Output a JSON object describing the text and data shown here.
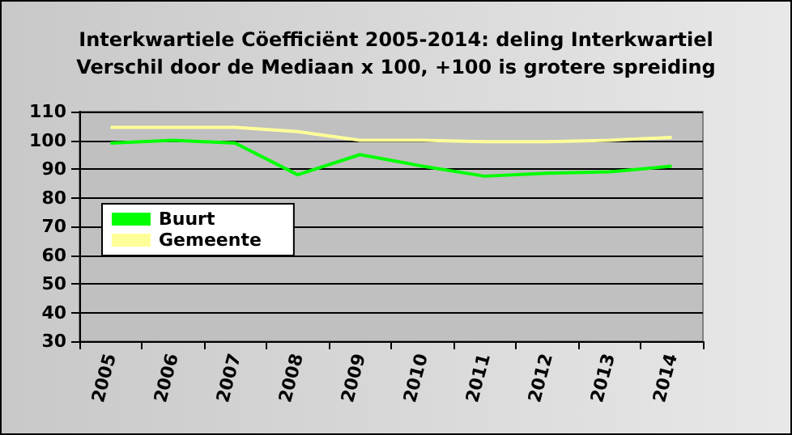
{
  "chart_data": {
    "type": "line",
    "title": "Interkwartiele Cöefficiënt 2005-2014: deling Interkwartiel\nVerschil door de Mediaan x 100, +100 is grotere spreiding",
    "categories": [
      "2005",
      "2006",
      "2007",
      "2008",
      "2009",
      "2010",
      "2011",
      "2012",
      "2013",
      "2014"
    ],
    "series": [
      {
        "name": "Buurt",
        "color": "#00ff00",
        "values": [
          99,
          100,
          99,
          88,
          95,
          91,
          87.5,
          88.5,
          89,
          91
        ]
      },
      {
        "name": "Gemeente",
        "color": "#ffff99",
        "values": [
          104.5,
          104.5,
          104.5,
          103,
          100,
          100,
          99.5,
          99.5,
          100,
          101
        ]
      }
    ],
    "ylim": [
      30,
      110
    ],
    "yticks": [
      30,
      40,
      50,
      60,
      70,
      80,
      90,
      100,
      110
    ],
    "grid": "y",
    "legend": "left",
    "marker": "none",
    "line_style": "solid"
  }
}
